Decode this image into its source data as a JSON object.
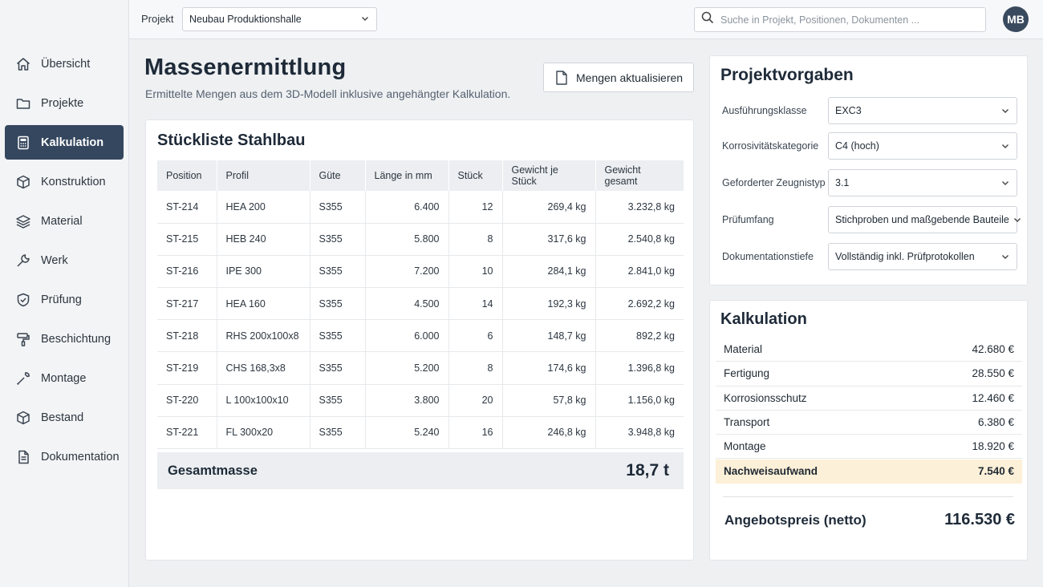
{
  "header": {
    "project_label": "Projekt",
    "project_value": "Neubau Produktionshalle",
    "search_placeholder": "Suche in Projekt, Positionen, Dokumenten ...",
    "avatar_initials": "MB"
  },
  "sidebar": {
    "items": [
      {
        "label": "Übersicht",
        "icon": "home-icon"
      },
      {
        "label": "Projekte",
        "icon": "folder-icon"
      },
      {
        "label": "Kalkulation",
        "icon": "calculator-icon",
        "active": true
      },
      {
        "label": "Konstruktion",
        "icon": "cube-icon"
      },
      {
        "label": "Material",
        "icon": "layers-icon"
      },
      {
        "label": "Werk",
        "icon": "wrench-icon"
      },
      {
        "label": "Prüfung",
        "icon": "shield-check-icon"
      },
      {
        "label": "Beschichtung",
        "icon": "paint-roller-icon"
      },
      {
        "label": "Montage",
        "icon": "tool-icon"
      },
      {
        "label": "Bestand",
        "icon": "box-icon"
      },
      {
        "label": "Dokumentation",
        "icon": "document-icon"
      }
    ]
  },
  "main": {
    "title": "Massenermittlung",
    "subtitle": "Ermittelte Mengen aus dem 3D-Modell inklusive angehängter Kalkulation.",
    "update_button": "Mengen aktualisieren"
  },
  "stueckliste": {
    "title": "Stückliste Stahlbau",
    "columns": [
      "Position",
      "Profil",
      "Güte",
      "Länge in mm",
      "Stück",
      "Gewicht je Stück",
      "Gewicht gesamt"
    ],
    "rows": [
      [
        "ST-214",
        "HEA 200",
        "S355",
        "6.400",
        "12",
        "269,4 kg",
        "3.232,8 kg"
      ],
      [
        "ST-215",
        "HEB 240",
        "S355",
        "5.800",
        "8",
        "317,6 kg",
        "2.540,8 kg"
      ],
      [
        "ST-216",
        "IPE 300",
        "S355",
        "7.200",
        "10",
        "284,1 kg",
        "2.841,0 kg"
      ],
      [
        "ST-217",
        "HEA 160",
        "S355",
        "4.500",
        "14",
        "192,3 kg",
        "2.692,2 kg"
      ],
      [
        "ST-218",
        "RHS 200x100x8",
        "S355",
        "6.000",
        "6",
        "148,7 kg",
        "892,2 kg"
      ],
      [
        "ST-219",
        "CHS 168,3x8",
        "S355",
        "5.200",
        "8",
        "174,6 kg",
        "1.396,8 kg"
      ],
      [
        "ST-220",
        "L 100x100x10",
        "S355",
        "3.800",
        "20",
        "57,8 kg",
        "1.156,0 kg"
      ],
      [
        "ST-221",
        "FL 300x20",
        "S355",
        "5.240",
        "16",
        "246,8 kg",
        "3.948,8 kg"
      ]
    ],
    "total_label": "Gesamtmasse",
    "total_value": "18,7 t"
  },
  "vorgaben": {
    "title": "Projektvorgaben",
    "fields": [
      {
        "label": "Ausführungsklasse",
        "value": "EXC3"
      },
      {
        "label": "Korrosivitätskategorie",
        "value": "C4 (hoch)"
      },
      {
        "label": "Geforderter Zeugnistyp",
        "value": "3.1"
      },
      {
        "label": "Prüfumfang",
        "value": "Stichproben und maßgebende Bauteile"
      },
      {
        "label": "Dokumentationstiefe",
        "value": "Vollständig inkl. Prüfprotokollen"
      }
    ]
  },
  "kalkulation": {
    "title": "Kalkulation",
    "items": [
      {
        "label": "Material",
        "value": "42.680 €"
      },
      {
        "label": "Fertigung",
        "value": "28.550 €"
      },
      {
        "label": "Korrosionsschutz",
        "value": "12.460 €"
      },
      {
        "label": "Transport",
        "value": "6.380 €"
      },
      {
        "label": "Montage",
        "value": "18.920 €"
      },
      {
        "label": "Nachweisaufwand",
        "value": "7.540 €",
        "highlight": true
      }
    ],
    "total_label": "Angebotspreis (netto)",
    "total_value": "116.530 €"
  },
  "colors": {
    "accent": "#34475e",
    "highlight": "#fdf0d8",
    "background": "#eef0f2"
  }
}
